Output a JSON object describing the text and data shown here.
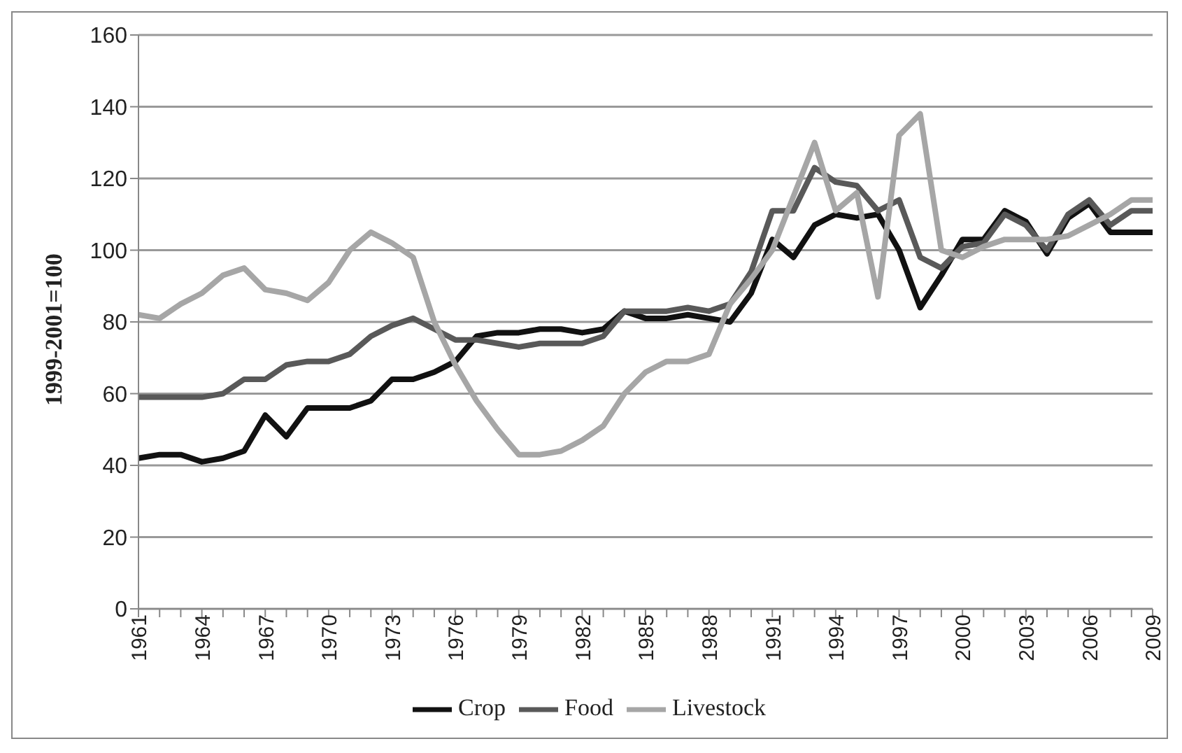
{
  "chart_data": {
    "type": "line",
    "ylabel": "1999-2001=100",
    "categories": [
      "1961",
      null,
      null,
      "1964",
      null,
      null,
      "1967",
      null,
      null,
      "1970",
      null,
      null,
      "1973",
      null,
      null,
      "1976",
      null,
      null,
      "1979",
      null,
      null,
      "1982",
      null,
      null,
      "1985",
      null,
      null,
      "1988",
      null,
      null,
      "1991",
      null,
      null,
      "1994",
      null,
      null,
      "1997",
      null,
      null,
      "2000",
      null,
      null,
      "2003",
      null,
      null,
      "2006",
      null,
      null,
      "2009"
    ],
    "series": [
      {
        "name": "Crop",
        "color": "#111111",
        "values": [
          42,
          43,
          43,
          41,
          42,
          44,
          54,
          48,
          56,
          56,
          56,
          58,
          64,
          64,
          66,
          69,
          76,
          77,
          77,
          78,
          78,
          77,
          78,
          83,
          81,
          81,
          82,
          81,
          80,
          88,
          103,
          98,
          107,
          110,
          109,
          110,
          100,
          84,
          93,
          103,
          103,
          111,
          108,
          99,
          109,
          113,
          105,
          105,
          105
        ]
      },
      {
        "name": "Food",
        "color": "#595959",
        "values": [
          59,
          59,
          59,
          59,
          60,
          64,
          64,
          68,
          69,
          69,
          71,
          76,
          79,
          81,
          78,
          75,
          75,
          74,
          73,
          74,
          74,
          74,
          76,
          83,
          83,
          83,
          84,
          83,
          85,
          94,
          111,
          111,
          123,
          119,
          118,
          111,
          114,
          98,
          95,
          101,
          102,
          110,
          107,
          100,
          110,
          114,
          107,
          111,
          111
        ]
      },
      {
        "name": "Livestock",
        "color": "#a6a6a6",
        "values": [
          82,
          81,
          85,
          88,
          93,
          95,
          89,
          88,
          86,
          91,
          100,
          105,
          102,
          98,
          80,
          68,
          58,
          50,
          43,
          43,
          44,
          47,
          51,
          60,
          66,
          69,
          69,
          71,
          85,
          92,
          100,
          115,
          130,
          111,
          116,
          87,
          132,
          138,
          100,
          98,
          101,
          103,
          103,
          103,
          104,
          107,
          110,
          114,
          114
        ]
      }
    ],
    "ylim": [
      0,
      160
    ],
    "yticks": [
      0,
      20,
      40,
      60,
      80,
      100,
      120,
      140,
      160
    ],
    "grid": "y",
    "legend": "bottom",
    "marker": "none",
    "line_style": "solid"
  }
}
